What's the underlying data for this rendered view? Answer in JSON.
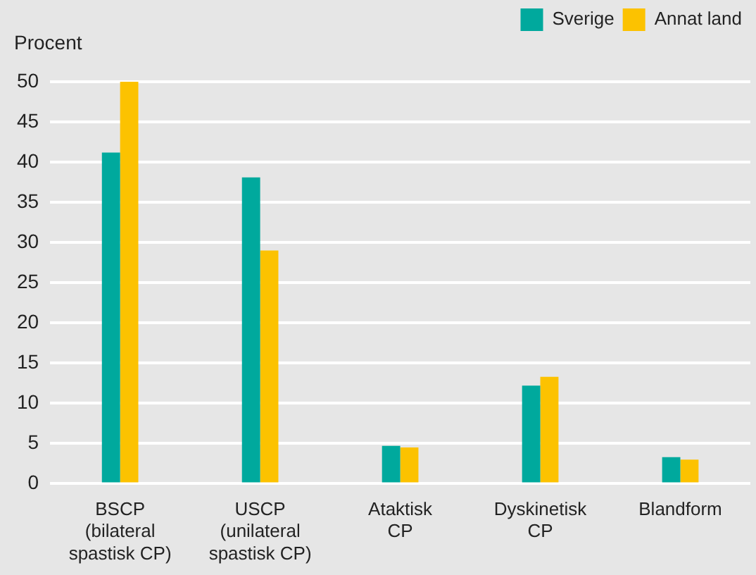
{
  "chart_data": {
    "type": "bar",
    "ylabel": "Procent",
    "categories": [
      "BSCP\n(bilateral\nspastisk CP)",
      "USCP\n(unilateral\nspastisk CP)",
      "Ataktisk\nCP",
      "Dyskinetisk\nCP",
      "Blandform"
    ],
    "series": [
      {
        "name": "Sverige",
        "color": "#00a99d",
        "values": [
          41.2,
          38.1,
          4.7,
          12.2,
          3.3
        ]
      },
      {
        "name": "Annat land",
        "color": "#fcc200",
        "values": [
          50,
          29,
          4.5,
          13.3,
          3.0
        ]
      }
    ],
    "ylim": [
      0,
      50
    ],
    "yticks": [
      0,
      5,
      10,
      15,
      20,
      25,
      30,
      35,
      40,
      45,
      50
    ],
    "grid": "y",
    "legend": "top right"
  }
}
